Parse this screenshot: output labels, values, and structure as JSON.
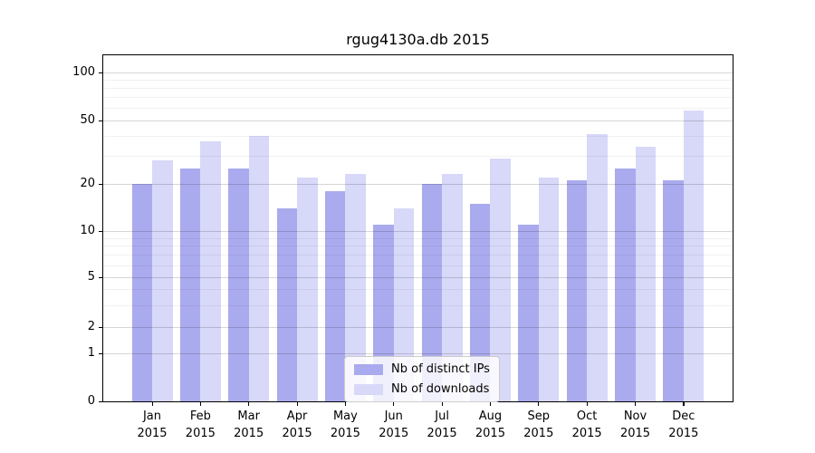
{
  "chart_data": {
    "type": "bar",
    "title": "rgug4130a.db 2015",
    "categories": [
      "Jan",
      "Feb",
      "Mar",
      "Apr",
      "May",
      "Jun",
      "Jul",
      "Aug",
      "Sep",
      "Oct",
      "Nov",
      "Dec"
    ],
    "category_year": "2015",
    "series": [
      {
        "name": "Nb of distinct IPs",
        "color": "#aaaaee",
        "values": [
          20,
          25,
          25,
          14,
          18,
          11,
          20,
          15,
          11,
          21,
          25,
          21
        ]
      },
      {
        "name": "Nb of downloads",
        "color": "#d8d8f8",
        "values": [
          28,
          37,
          40,
          22,
          23,
          14,
          23,
          29,
          22,
          41,
          34,
          58
        ]
      }
    ],
    "y_axis": {
      "scale": "log-like",
      "ticks": [
        0,
        1,
        2,
        5,
        10,
        20,
        50,
        100
      ],
      "minor_gridlines": [
        3,
        4,
        6,
        7,
        8,
        9,
        30,
        40,
        60,
        70,
        80,
        90
      ],
      "range": [
        0,
        130
      ]
    },
    "grid": true,
    "legend_position": "lower center"
  }
}
